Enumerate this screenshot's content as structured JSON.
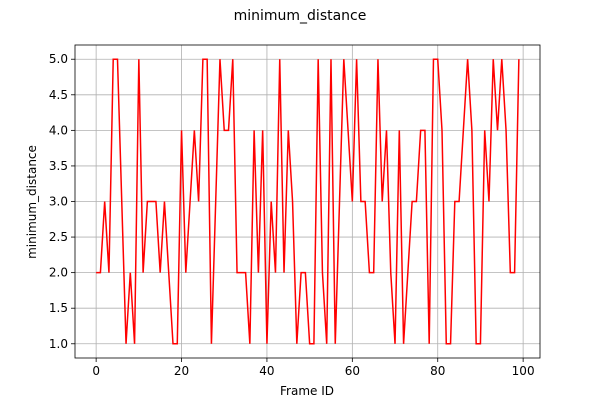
{
  "chart_data": {
    "type": "line",
    "title": "minimum_distance",
    "x_label": "Frame ID",
    "y_label": "minimum_distance",
    "x": [
      0,
      1,
      2,
      3,
      4,
      5,
      6,
      7,
      8,
      9,
      10,
      11,
      12,
      13,
      14,
      15,
      16,
      17,
      18,
      19,
      20,
      21,
      22,
      23,
      24,
      25,
      26,
      27,
      28,
      29,
      30,
      31,
      32,
      33,
      34,
      35,
      36,
      37,
      38,
      39,
      40,
      41,
      42,
      43,
      44,
      45,
      46,
      47,
      48,
      49,
      50,
      51,
      52,
      53,
      54,
      55,
      56,
      57,
      58,
      59,
      60,
      61,
      62,
      63,
      64,
      65,
      66,
      67,
      68,
      69,
      70,
      71,
      72,
      73,
      74,
      75,
      76,
      77,
      78,
      79,
      80,
      81,
      82,
      83,
      84,
      85,
      86,
      87,
      88,
      89,
      90,
      91,
      92,
      93,
      94,
      95,
      96,
      97,
      98,
      99
    ],
    "series": [
      {
        "name": "minimum_distance",
        "color": "#ff0000",
        "values": [
          2,
          2,
          3,
          2,
          5,
          5,
          3,
          1,
          2,
          1,
          5,
          2,
          3,
          3,
          3,
          2,
          3,
          2,
          1,
          1,
          4,
          2,
          3,
          4,
          3,
          5,
          5,
          1,
          3,
          5,
          4,
          4,
          5,
          2,
          2,
          2,
          1,
          4,
          2,
          4,
          1,
          3,
          2,
          5,
          2,
          4,
          3,
          1,
          2,
          2,
          1,
          1,
          5,
          2,
          1,
          5,
          1,
          3,
          5,
          4,
          3,
          5,
          3,
          3,
          2,
          2,
          5,
          3,
          4,
          2,
          1,
          4,
          1,
          2,
          3,
          3,
          4,
          4,
          1,
          5,
          5,
          4,
          1,
          1,
          3,
          3,
          4,
          5,
          4,
          1,
          1,
          4,
          3,
          5,
          4,
          5,
          4,
          2,
          2,
          5
        ]
      }
    ],
    "xlim": [
      -4.95,
      103.95
    ],
    "xticks": [
      0,
      20,
      40,
      60,
      80,
      100
    ],
    "ylim": [
      0.8,
      5.2
    ],
    "yticks": [
      {
        "value": 1,
        "label": "1.0"
      },
      {
        "value": 1.5,
        "label": "1.5"
      },
      {
        "value": 2,
        "label": "2.0"
      },
      {
        "value": 2.5,
        "label": "2.5"
      },
      {
        "value": 3,
        "label": "3.0"
      },
      {
        "value": 3.5,
        "label": "3.5"
      },
      {
        "value": 4,
        "label": "4.0"
      },
      {
        "value": 4.5,
        "label": "4.5"
      },
      {
        "value": 5,
        "label": "5.0"
      }
    ],
    "grid": true
  }
}
